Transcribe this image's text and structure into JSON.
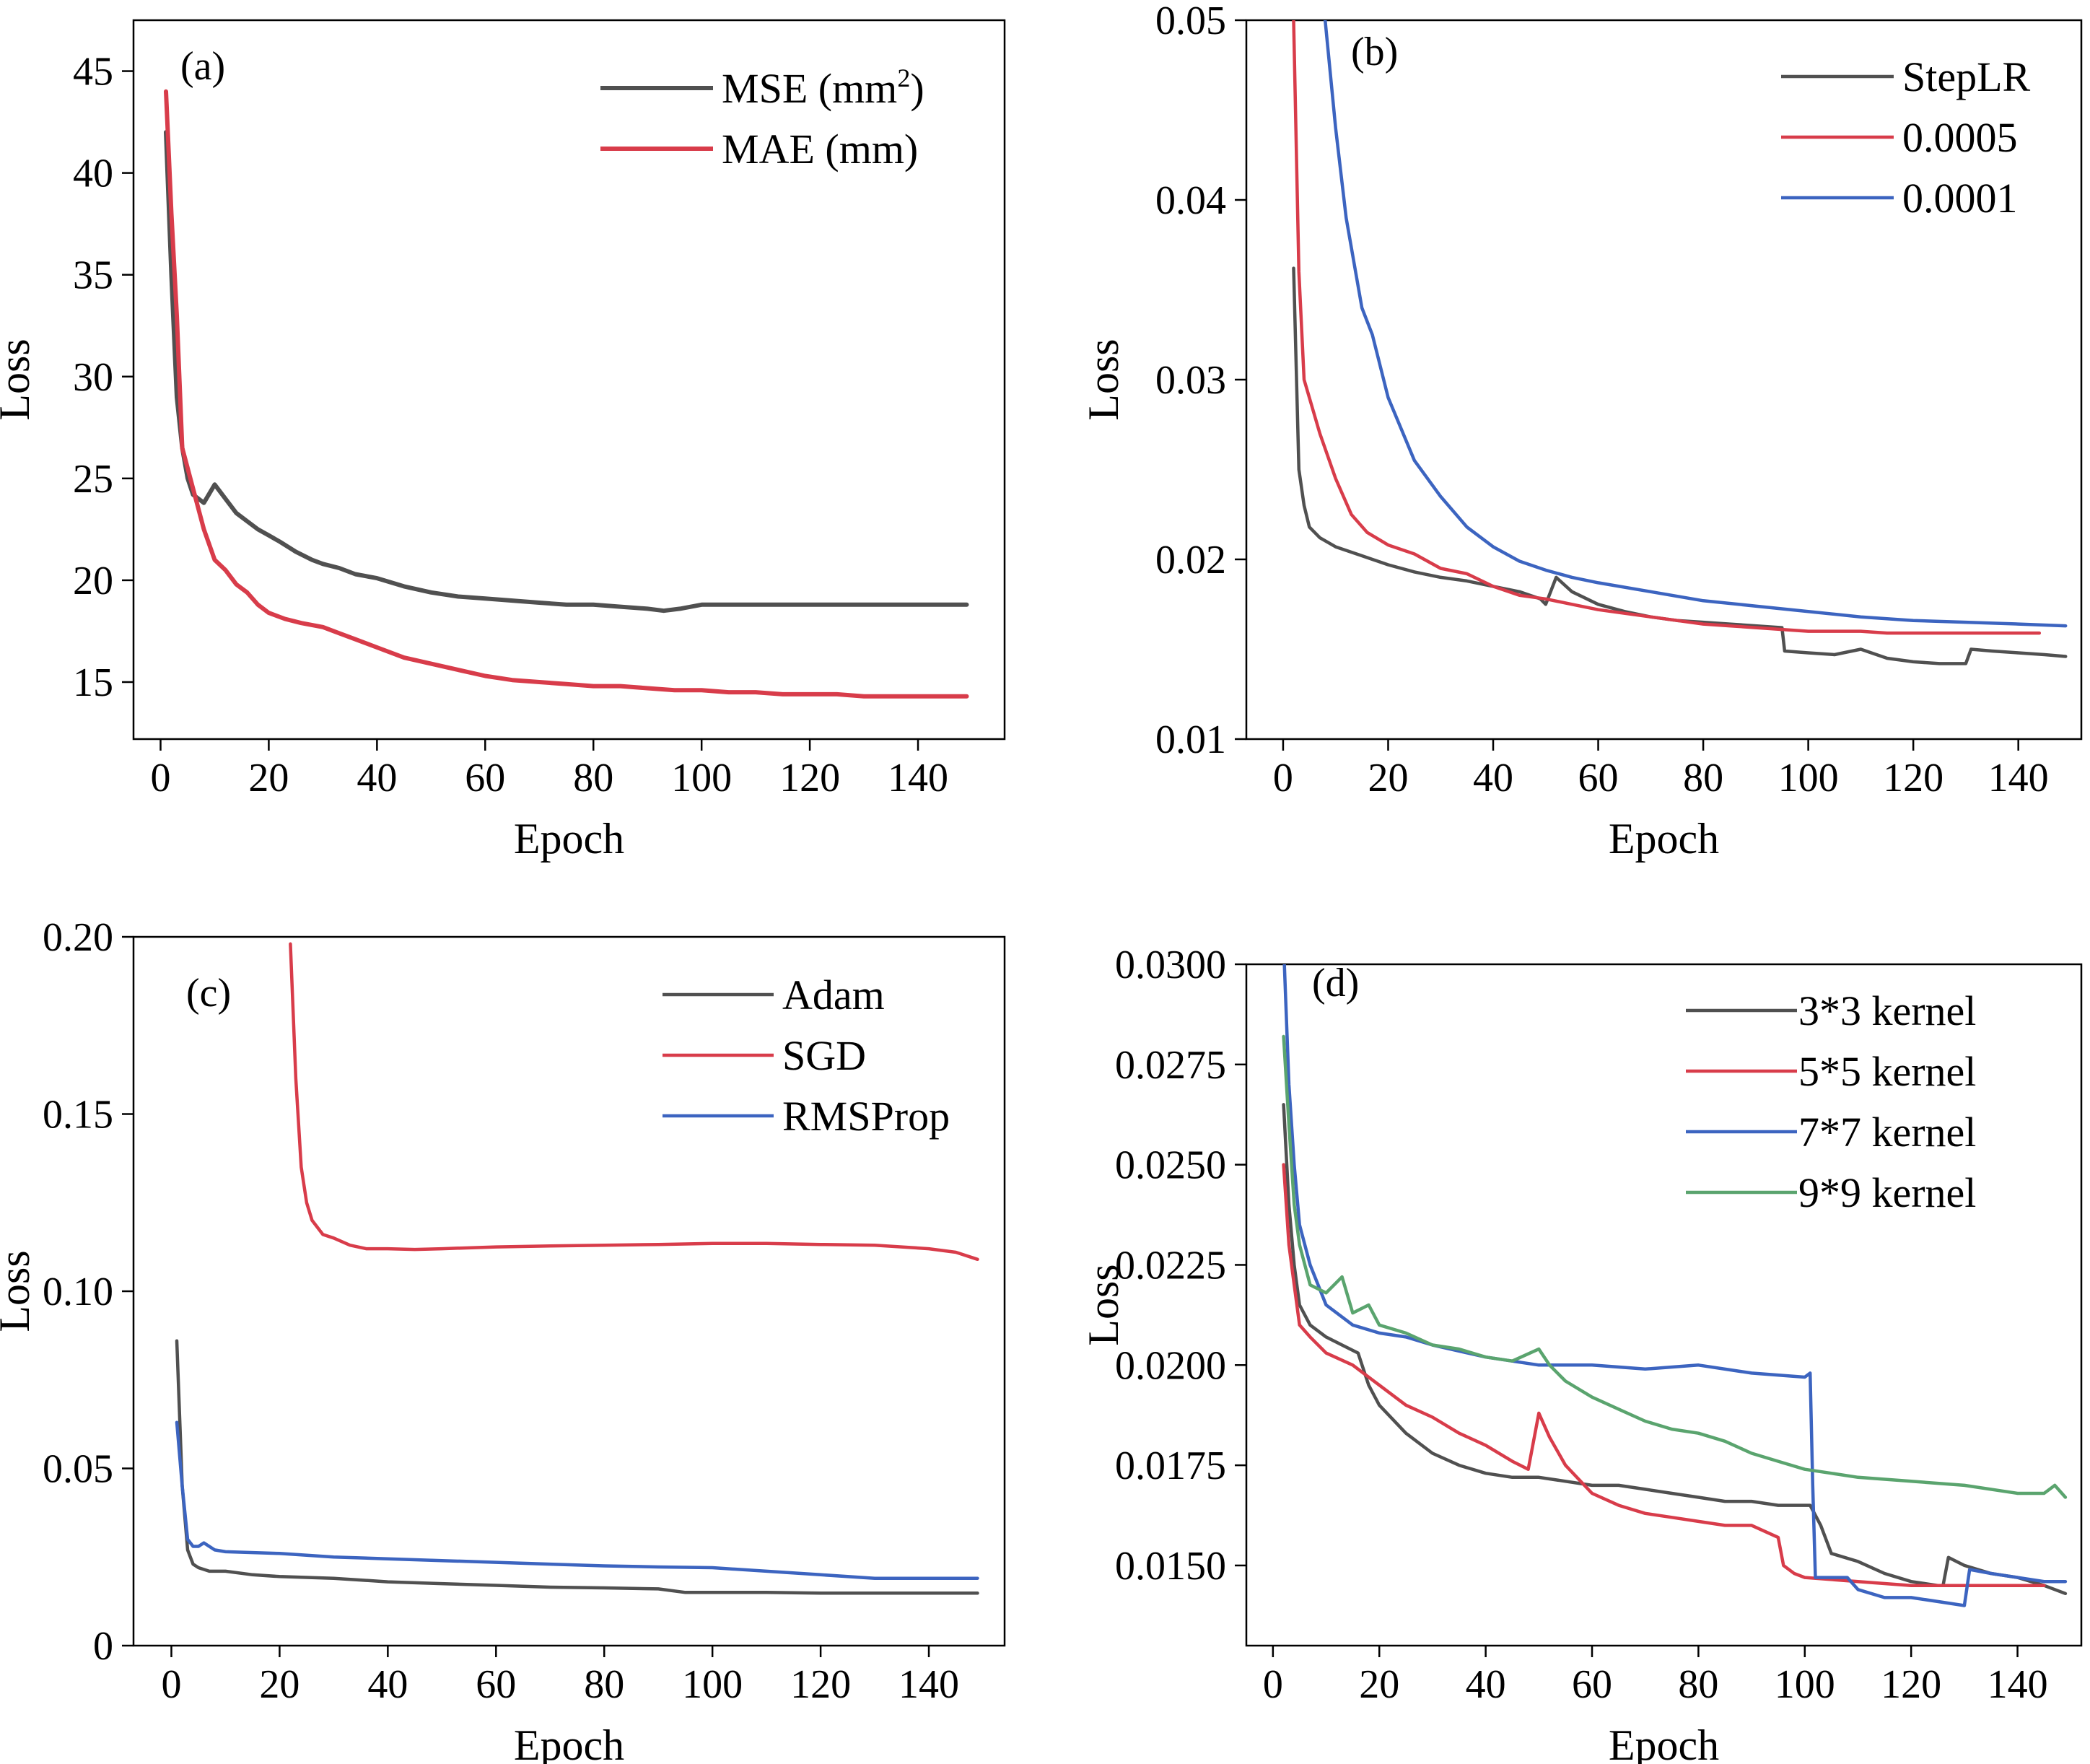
{
  "chart_data": [
    {
      "panel": "(a)",
      "type": "line",
      "xlabel": "Epoch",
      "ylabel": "Loss",
      "xlim": [
        -5,
        156
      ],
      "ylim": [
        12.2,
        47.5
      ],
      "xticks": [
        0,
        20,
        40,
        60,
        80,
        100,
        120,
        140
      ],
      "yticks": [
        15,
        20,
        25,
        30,
        35,
        40,
        45
      ],
      "legend_position": "top-right",
      "grid": false,
      "series": [
        {
          "name": "MSE (mm²)",
          "name_base": "MSE (mm",
          "name_sup": "2",
          "name_tail": ")",
          "color": "#505050",
          "x": [
            1,
            2,
            3,
            4,
            5,
            6,
            8,
            10,
            12,
            14,
            16,
            18,
            20,
            22,
            25,
            28,
            30,
            33,
            36,
            40,
            45,
            50,
            55,
            60,
            65,
            70,
            75,
            80,
            85,
            90,
            93,
            96,
            100,
            110,
            120,
            130,
            140,
            149
          ],
          "y": [
            42,
            35,
            29,
            26.5,
            25,
            24.2,
            23.8,
            24.7,
            24,
            23.3,
            22.9,
            22.5,
            22.2,
            21.9,
            21.4,
            21,
            20.8,
            20.6,
            20.3,
            20.1,
            19.7,
            19.4,
            19.2,
            19.1,
            19,
            18.9,
            18.8,
            18.8,
            18.7,
            18.6,
            18.5,
            18.6,
            18.8,
            18.8,
            18.8,
            18.8,
            18.8,
            18.8
          ]
        },
        {
          "name": "MAE (mm)",
          "color": "#d83c4a",
          "x": [
            1,
            2,
            3,
            4,
            5,
            6,
            8,
            10,
            12,
            14,
            16,
            18,
            20,
            23,
            26,
            30,
            33,
            36,
            40,
            45,
            50,
            55,
            60,
            65,
            70,
            75,
            80,
            85,
            90,
            95,
            100,
            105,
            110,
            115,
            120,
            125,
            130,
            135,
            140,
            145,
            149
          ],
          "y": [
            44,
            38,
            33,
            26.5,
            25.5,
            24.5,
            22.5,
            21,
            20.5,
            19.8,
            19.4,
            18.8,
            18.4,
            18.1,
            17.9,
            17.7,
            17.4,
            17.1,
            16.7,
            16.2,
            15.9,
            15.6,
            15.3,
            15.1,
            15,
            14.9,
            14.8,
            14.8,
            14.7,
            14.6,
            14.6,
            14.5,
            14.5,
            14.4,
            14.4,
            14.4,
            14.3,
            14.3,
            14.3,
            14.3,
            14.3
          ]
        }
      ]
    },
    {
      "panel": "(b)",
      "type": "line",
      "xlabel": "Epoch",
      "ylabel": "Loss",
      "xlim": [
        -7,
        152
      ],
      "ylim": [
        0.01,
        0.05
      ],
      "xticks": [
        0,
        20,
        40,
        60,
        80,
        100,
        120,
        140
      ],
      "yticks": [
        0.01,
        0.02,
        0.03,
        0.04,
        0.05
      ],
      "legend_position": "top-right",
      "grid": false,
      "series": [
        {
          "name": "StepLR",
          "color": "#505050",
          "x": [
            2,
            3,
            4,
            5,
            7,
            10,
            15,
            20,
            25,
            30,
            35,
            40,
            45,
            49,
            50,
            52,
            55,
            60,
            65,
            70,
            75,
            80,
            85,
            90,
            95,
            95.5,
            100,
            105,
            110,
            115,
            120,
            125,
            130,
            131,
            135,
            140,
            145,
            149
          ],
          "y": [
            0.0362,
            0.025,
            0.023,
            0.0218,
            0.0212,
            0.0207,
            0.0202,
            0.0197,
            0.0193,
            0.019,
            0.0188,
            0.0185,
            0.0182,
            0.0178,
            0.0175,
            0.019,
            0.0182,
            0.0175,
            0.0171,
            0.0168,
            0.0166,
            0.0165,
            0.0164,
            0.0163,
            0.0162,
            0.0149,
            0.0148,
            0.0147,
            0.015,
            0.0145,
            0.0143,
            0.0142,
            0.0142,
            0.015,
            0.0149,
            0.0148,
            0.0147,
            0.0146
          ]
        },
        {
          "name": "0.0005",
          "color": "#d83c4a",
          "x": [
            2,
            3,
            4,
            5,
            7,
            10,
            13,
            16,
            20,
            25,
            30,
            35,
            40,
            45,
            50,
            55,
            60,
            65,
            70,
            75,
            80,
            85,
            90,
            95,
            100,
            105,
            110,
            115,
            120,
            125,
            130,
            135,
            140,
            144
          ],
          "y": [
            0.05,
            0.036,
            0.03,
            0.029,
            0.027,
            0.0245,
            0.0225,
            0.0215,
            0.0208,
            0.0203,
            0.0195,
            0.0192,
            0.0185,
            0.018,
            0.0178,
            0.0175,
            0.0172,
            0.017,
            0.0168,
            0.0166,
            0.0164,
            0.0163,
            0.0162,
            0.0161,
            0.016,
            0.016,
            0.016,
            0.0159,
            0.0159,
            0.0159,
            0.0159,
            0.0159,
            0.0159,
            0.0159
          ]
        },
        {
          "name": "0.0001",
          "color": "#3c64c0",
          "x": [
            8,
            10,
            12,
            15,
            17,
            20,
            25,
            30,
            35,
            40,
            45,
            50,
            55,
            60,
            70,
            80,
            90,
            100,
            110,
            120,
            130,
            140,
            149
          ],
          "y": [
            0.05,
            0.044,
            0.039,
            0.034,
            0.0325,
            0.029,
            0.0255,
            0.0235,
            0.0218,
            0.0207,
            0.0199,
            0.0194,
            0.019,
            0.0187,
            0.0182,
            0.0177,
            0.0174,
            0.0171,
            0.0168,
            0.0166,
            0.0165,
            0.0164,
            0.0163
          ]
        }
      ]
    },
    {
      "panel": "(c)",
      "type": "line",
      "xlabel": "Epoch",
      "ylabel": "Loss",
      "xlim": [
        -7,
        154
      ],
      "ylim": [
        0,
        0.2
      ],
      "xticks": [
        0,
        20,
        40,
        60,
        80,
        100,
        120,
        140
      ],
      "yticks": [
        0,
        0.05,
        0.1,
        0.15,
        0.2
      ],
      "ytick_labels": [
        "0",
        "0.05",
        "0.10",
        "0.15",
        "0.20"
      ],
      "legend_position": "top-right",
      "grid": false,
      "series": [
        {
          "name": "Adam",
          "color": "#505050",
          "x": [
            1,
            2,
            3,
            4,
            5,
            7,
            10,
            15,
            20,
            30,
            40,
            50,
            60,
            70,
            80,
            90,
            95,
            100,
            110,
            120,
            130,
            140,
            149
          ],
          "y": [
            0.086,
            0.045,
            0.027,
            0.023,
            0.022,
            0.021,
            0.021,
            0.02,
            0.0195,
            0.019,
            0.018,
            0.0175,
            0.017,
            0.0165,
            0.0163,
            0.016,
            0.015,
            0.015,
            0.015,
            0.0148,
            0.0148,
            0.0148,
            0.0148
          ]
        },
        {
          "name": "SGD",
          "color": "#d83c4a",
          "x": [
            22,
            23,
            24,
            25,
            26,
            28,
            30,
            33,
            36,
            40,
            45,
            50,
            60,
            70,
            80,
            90,
            100,
            110,
            120,
            130,
            140,
            145,
            149
          ],
          "y": [
            0.198,
            0.16,
            0.135,
            0.125,
            0.12,
            0.116,
            0.115,
            0.113,
            0.112,
            0.112,
            0.1118,
            0.112,
            0.1125,
            0.1128,
            0.113,
            0.1132,
            0.1135,
            0.1135,
            0.1132,
            0.113,
            0.112,
            0.111,
            0.109
          ]
        },
        {
          "name": "RMSProp",
          "color": "#3c64c0",
          "x": [
            1,
            2,
            3,
            4,
            5,
            6,
            8,
            10,
            20,
            30,
            40,
            50,
            60,
            70,
            80,
            90,
            100,
            110,
            120,
            130,
            140,
            149
          ],
          "y": [
            0.063,
            0.045,
            0.03,
            0.028,
            0.028,
            0.029,
            0.027,
            0.0265,
            0.026,
            0.025,
            0.0245,
            0.024,
            0.0235,
            0.023,
            0.0225,
            0.0222,
            0.022,
            0.021,
            0.02,
            0.019,
            0.019,
            0.019
          ]
        }
      ]
    },
    {
      "panel": "(d)",
      "type": "line",
      "xlabel": "Epoch",
      "ylabel": "Loss",
      "xlim": [
        -5,
        152
      ],
      "ylim": [
        0.013,
        0.03
      ],
      "xticks": [
        0,
        20,
        40,
        60,
        80,
        100,
        120,
        140
      ],
      "yticks": [
        0.015,
        0.0175,
        0.02,
        0.0225,
        0.025,
        0.0275,
        0.03
      ],
      "ytick_labels": [
        "0.0150",
        "0.0175",
        "0.0200",
        "0.0225",
        "0.0250",
        "0.0275",
        "0.0300"
      ],
      "legend_position": "top-right",
      "grid": false,
      "series": [
        {
          "name": "3*3 kernel",
          "color": "#505050",
          "x": [
            2,
            3,
            4,
            5,
            7,
            10,
            13,
            16,
            18,
            20,
            25,
            30,
            35,
            40,
            45,
            50,
            55,
            60,
            65,
            70,
            75,
            80,
            85,
            90,
            95,
            100,
            101,
            103,
            105,
            110,
            115,
            120,
            125,
            126,
            127,
            130,
            135,
            140,
            145,
            149
          ],
          "y": [
            0.0265,
            0.024,
            0.0225,
            0.0215,
            0.021,
            0.0207,
            0.0205,
            0.0203,
            0.0195,
            0.019,
            0.0183,
            0.0178,
            0.0175,
            0.0173,
            0.0172,
            0.0172,
            0.0171,
            0.017,
            0.017,
            0.0169,
            0.0168,
            0.0167,
            0.0166,
            0.0166,
            0.0165,
            0.0165,
            0.0165,
            0.016,
            0.0153,
            0.0151,
            0.0148,
            0.0146,
            0.0145,
            0.0145,
            0.0152,
            0.015,
            0.0148,
            0.0147,
            0.0145,
            0.0143
          ]
        },
        {
          "name": "5*5 kernel",
          "color": "#d83c4a",
          "x": [
            2,
            3,
            4,
            5,
            7,
            10,
            15,
            20,
            25,
            30,
            35,
            40,
            45,
            48,
            50,
            52,
            55,
            60,
            65,
            70,
            75,
            80,
            85,
            90,
            95,
            96,
            98,
            100,
            110,
            120,
            130,
            140,
            145
          ],
          "y": [
            0.025,
            0.023,
            0.022,
            0.021,
            0.0207,
            0.0203,
            0.02,
            0.0195,
            0.019,
            0.0187,
            0.0183,
            0.018,
            0.0176,
            0.0174,
            0.0188,
            0.0182,
            0.0175,
            0.0168,
            0.0165,
            0.0163,
            0.0162,
            0.0161,
            0.016,
            0.016,
            0.0157,
            0.015,
            0.0148,
            0.0147,
            0.0146,
            0.0145,
            0.0145,
            0.0145,
            0.0145
          ]
        },
        {
          "name": "7*7 kernel",
          "color": "#3c64c0",
          "x": [
            2,
            3,
            4,
            5,
            7,
            10,
            15,
            20,
            25,
            30,
            40,
            50,
            60,
            70,
            80,
            90,
            100,
            101,
            101.5,
            102,
            105,
            108,
            110,
            115,
            120,
            125,
            130,
            131,
            135,
            140,
            145,
            149
          ],
          "y": [
            0.0305,
            0.027,
            0.025,
            0.0235,
            0.0225,
            0.0215,
            0.021,
            0.0208,
            0.0207,
            0.0205,
            0.0202,
            0.02,
            0.02,
            0.0199,
            0.02,
            0.0198,
            0.0197,
            0.0198,
            0.017,
            0.0147,
            0.0147,
            0.0147,
            0.0144,
            0.0142,
            0.0142,
            0.0141,
            0.014,
            0.0149,
            0.0148,
            0.0147,
            0.0146,
            0.0146
          ]
        },
        {
          "name": "9*9 kernel",
          "color": "#5aa46e",
          "x": [
            2,
            3,
            4,
            5,
            7,
            10,
            13,
            15,
            18,
            20,
            25,
            30,
            35,
            40,
            45,
            50,
            52,
            55,
            60,
            65,
            70,
            75,
            80,
            85,
            90,
            95,
            100,
            105,
            110,
            120,
            130,
            140,
            145,
            147,
            149
          ],
          "y": [
            0.0282,
            0.026,
            0.024,
            0.023,
            0.022,
            0.0218,
            0.0222,
            0.0213,
            0.0215,
            0.021,
            0.0208,
            0.0205,
            0.0204,
            0.0202,
            0.0201,
            0.0204,
            0.02,
            0.0196,
            0.0192,
            0.0189,
            0.0186,
            0.0184,
            0.0183,
            0.0181,
            0.0178,
            0.0176,
            0.0174,
            0.0173,
            0.0172,
            0.0171,
            0.017,
            0.0168,
            0.0168,
            0.017,
            0.0167
          ]
        }
      ]
    }
  ]
}
